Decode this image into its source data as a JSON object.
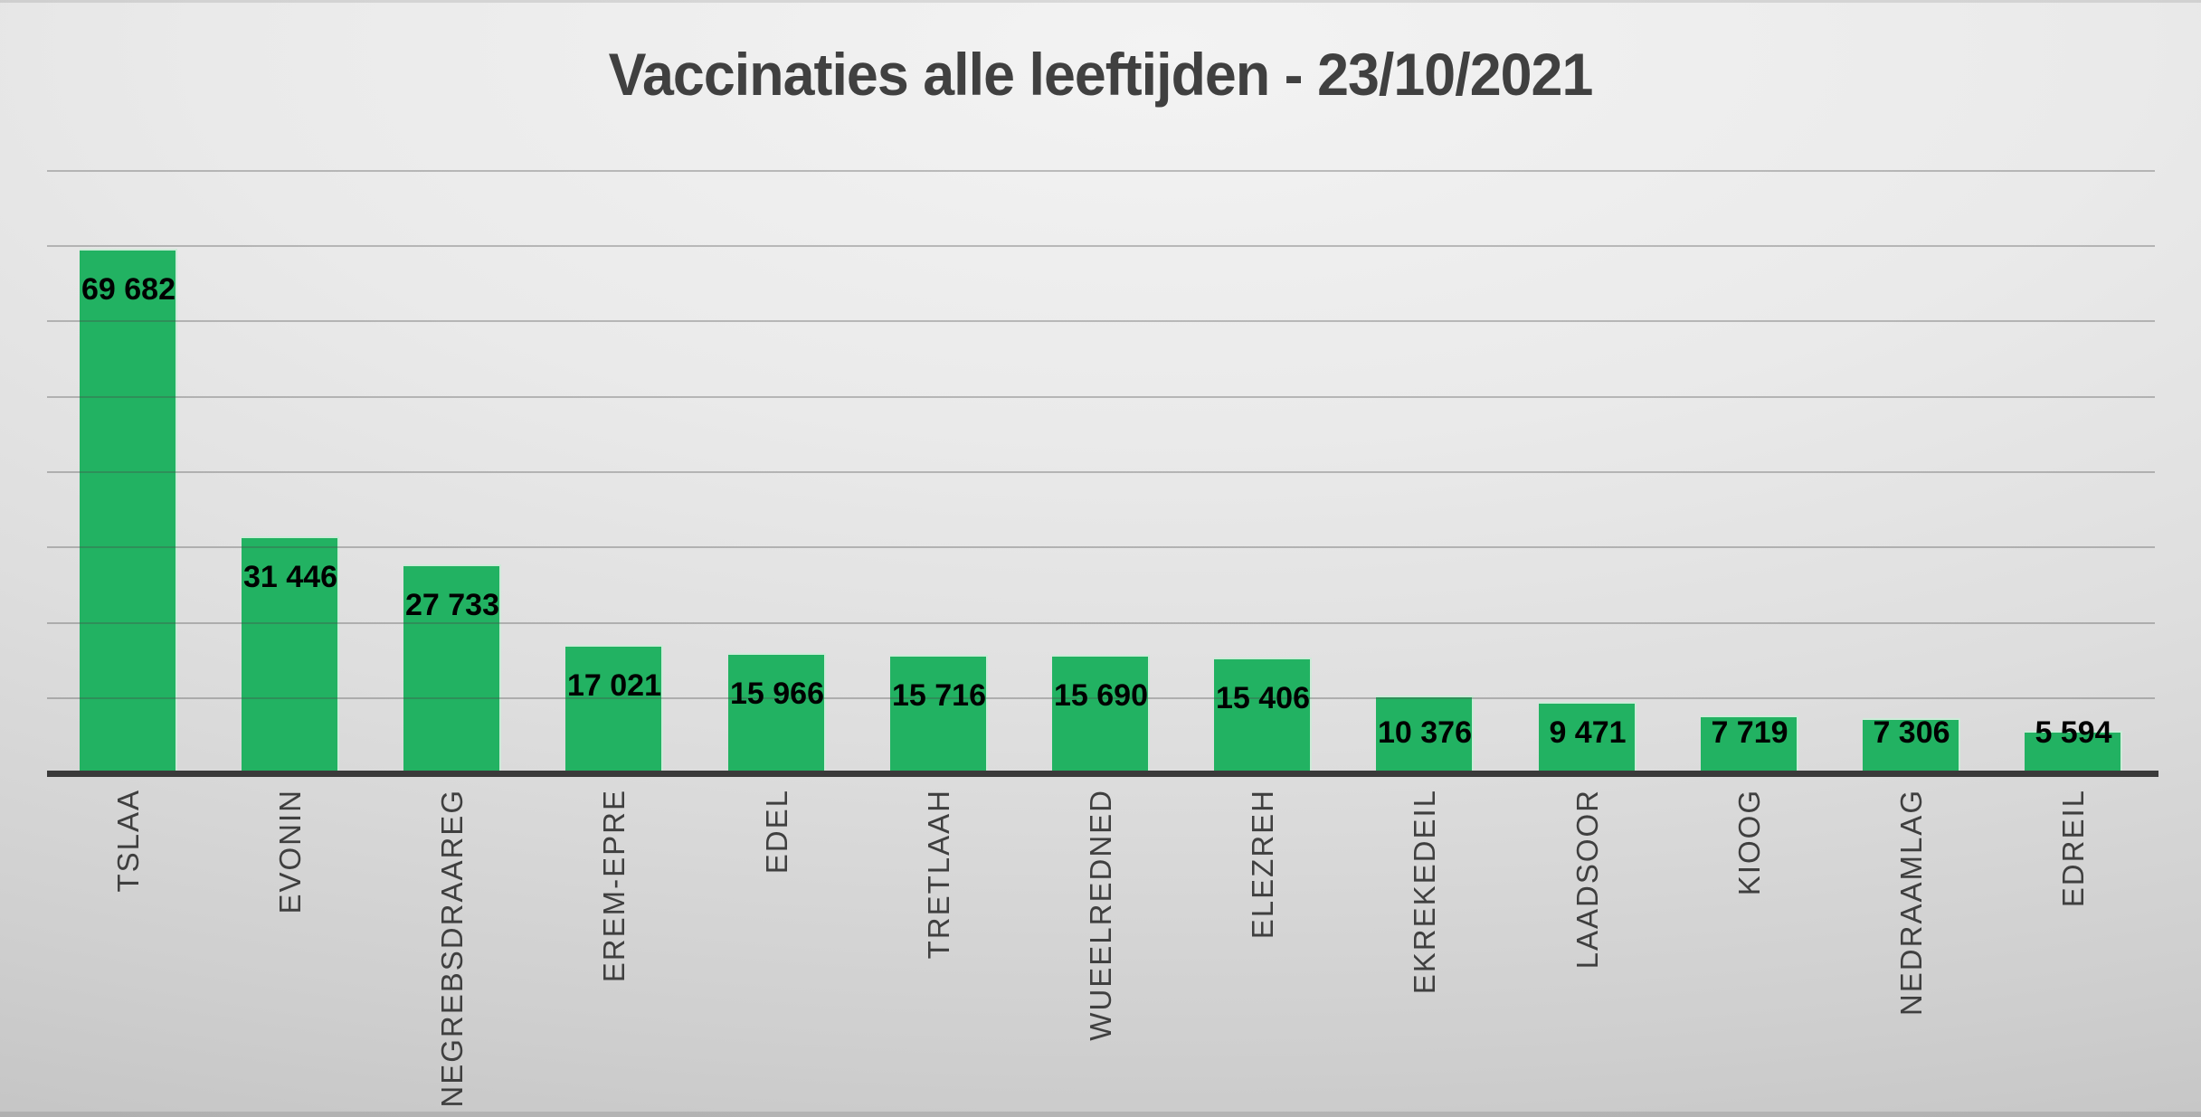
{
  "title": "Vaccinaties alle leeftijden - 23/10/2021",
  "chart_data": {
    "type": "bar",
    "title": "Vaccinaties alle leeftijden - 23/10/2021",
    "categories": [
      "AALST",
      "NINOVE",
      "GERAARDSBERGEN",
      "ERPE-MERE",
      "LEDE",
      "HAALTERT",
      "DENDERLEEUW",
      "HERZELE",
      "LIEDEKERKE",
      "ROOSDAAL",
      "GOOIK",
      "GALMAARDEN",
      "LIERDE"
    ],
    "values": [
      69682,
      31446,
      27733,
      17021,
      15966,
      15716,
      15690,
      15406,
      10376,
      9471,
      7719,
      7306,
      5594
    ],
    "value_labels": [
      "69 682",
      "31 446",
      "27 733",
      "17 021",
      "15 966",
      "15 716",
      "15 690",
      "15 406",
      "10 376",
      "9 471",
      "7 719",
      "7 306",
      "5 594"
    ],
    "xlabel": "",
    "ylabel": "",
    "ylim": [
      0,
      80000
    ],
    "gridline_step": 10000,
    "grid": true,
    "legend": false,
    "y_tick_labels_visible": false,
    "category_label_rotation": "vertical-top-to-bottom-glyphs-ccw",
    "colors": {
      "bar_fill": "#22b262",
      "bar_border": "#cdebd8",
      "gridline": "#a8a8a8",
      "axis_line": "#3a3a3a",
      "title_text": "#404040",
      "category_text": "#3f3f3f",
      "value_text": "#000000",
      "background_light": "#f3f3f3",
      "background_dark": "#b6b6b6"
    }
  }
}
